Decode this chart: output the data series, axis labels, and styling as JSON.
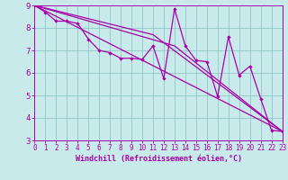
{
  "xlabel": "Windchill (Refroidissement éolien,°C)",
  "xlim": [
    0,
    23
  ],
  "ylim": [
    3,
    9
  ],
  "xticks": [
    0,
    1,
    2,
    3,
    4,
    5,
    6,
    7,
    8,
    9,
    10,
    11,
    12,
    13,
    14,
    15,
    16,
    17,
    18,
    19,
    20,
    21,
    22,
    23
  ],
  "yticks": [
    3,
    4,
    5,
    6,
    7,
    8,
    9
  ],
  "bg_color": "#c8eaea",
  "line_color": "#aa00aa",
  "grid_color": "#90c8c8",
  "line1": [
    [
      0,
      9.0
    ],
    [
      1,
      8.7
    ],
    [
      2,
      8.3
    ],
    [
      3,
      8.3
    ],
    [
      4,
      8.2
    ],
    [
      5,
      7.5
    ],
    [
      6,
      7.0
    ],
    [
      7,
      6.9
    ],
    [
      8,
      6.65
    ],
    [
      9,
      6.65
    ],
    [
      10,
      6.6
    ],
    [
      11,
      7.2
    ],
    [
      12,
      5.75
    ],
    [
      13,
      8.85
    ],
    [
      14,
      7.2
    ],
    [
      15,
      6.55
    ],
    [
      16,
      6.5
    ],
    [
      17,
      4.95
    ],
    [
      18,
      7.6
    ],
    [
      19,
      5.9
    ],
    [
      20,
      6.3
    ],
    [
      21,
      4.85
    ],
    [
      22,
      3.45
    ],
    [
      23,
      3.4
    ]
  ],
  "line2": [
    [
      0,
      9.0
    ],
    [
      23,
      3.4
    ]
  ],
  "line3": [
    [
      0,
      9.0
    ],
    [
      11,
      7.7
    ],
    [
      23,
      3.4
    ]
  ],
  "line4": [
    [
      0,
      9.0
    ],
    [
      13,
      7.2
    ],
    [
      23,
      3.4
    ]
  ]
}
